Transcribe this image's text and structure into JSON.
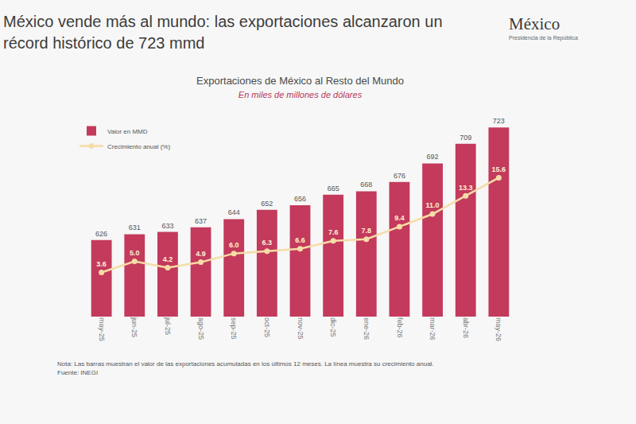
{
  "headline": "México vende más al mundo: las exportaciones alcanzaron un récord histórico de 723 mmd",
  "logo": {
    "text": "México",
    "subtitle": "Presidencia de la República"
  },
  "footnotes": [
    "Nota: Las barras muestran el valor de las exportaciones acumuladas en los últimos 12 meses. La línea muestra su crecimiento anual.",
    "Fuente: INEGI"
  ],
  "chart_data": {
    "type": "bar",
    "title": "Exportaciones de México al Resto del Mundo",
    "subtitle": "En miles de millones de dólares",
    "categories": [
      "may-25",
      "jun-25",
      "jul-25",
      "ago-25",
      "sep-25",
      "oct-25",
      "nov-25",
      "dic-25",
      "ene-26",
      "feb-26",
      "mar-26",
      "abr-26",
      "may-26"
    ],
    "series": [
      {
        "name": "Valor en MMD",
        "type": "bar",
        "color": "#c33a5c",
        "values": [
          626,
          631,
          633,
          637,
          644,
          652,
          656,
          665,
          668,
          676,
          692,
          709,
          723
        ]
      },
      {
        "name": "Crecimiento anual (%)",
        "type": "line",
        "axis": "y2",
        "color": "#f6dca6",
        "marker": "circle",
        "values": [
          3.6,
          5.0,
          4.2,
          4.9,
          6.0,
          6.3,
          6.6,
          7.6,
          7.8,
          9.4,
          11.0,
          13.3,
          15.6
        ],
        "value_labels": [
          "3.6",
          "5.0",
          "4.2",
          "4.9",
          "6.0",
          "6.3",
          "6.6",
          "7.6",
          "7.8",
          "9.4",
          "11.0",
          "13.3",
          "15.6"
        ]
      }
    ],
    "ylim": [
      560,
      730
    ],
    "yticks": [
      560,
      730
    ],
    "y2lim": [
      -2,
      23
    ],
    "y2ticks": [
      -2,
      23
    ],
    "grid": false,
    "legend": "upper left",
    "data_labels": true,
    "tick_labels": "x"
  }
}
